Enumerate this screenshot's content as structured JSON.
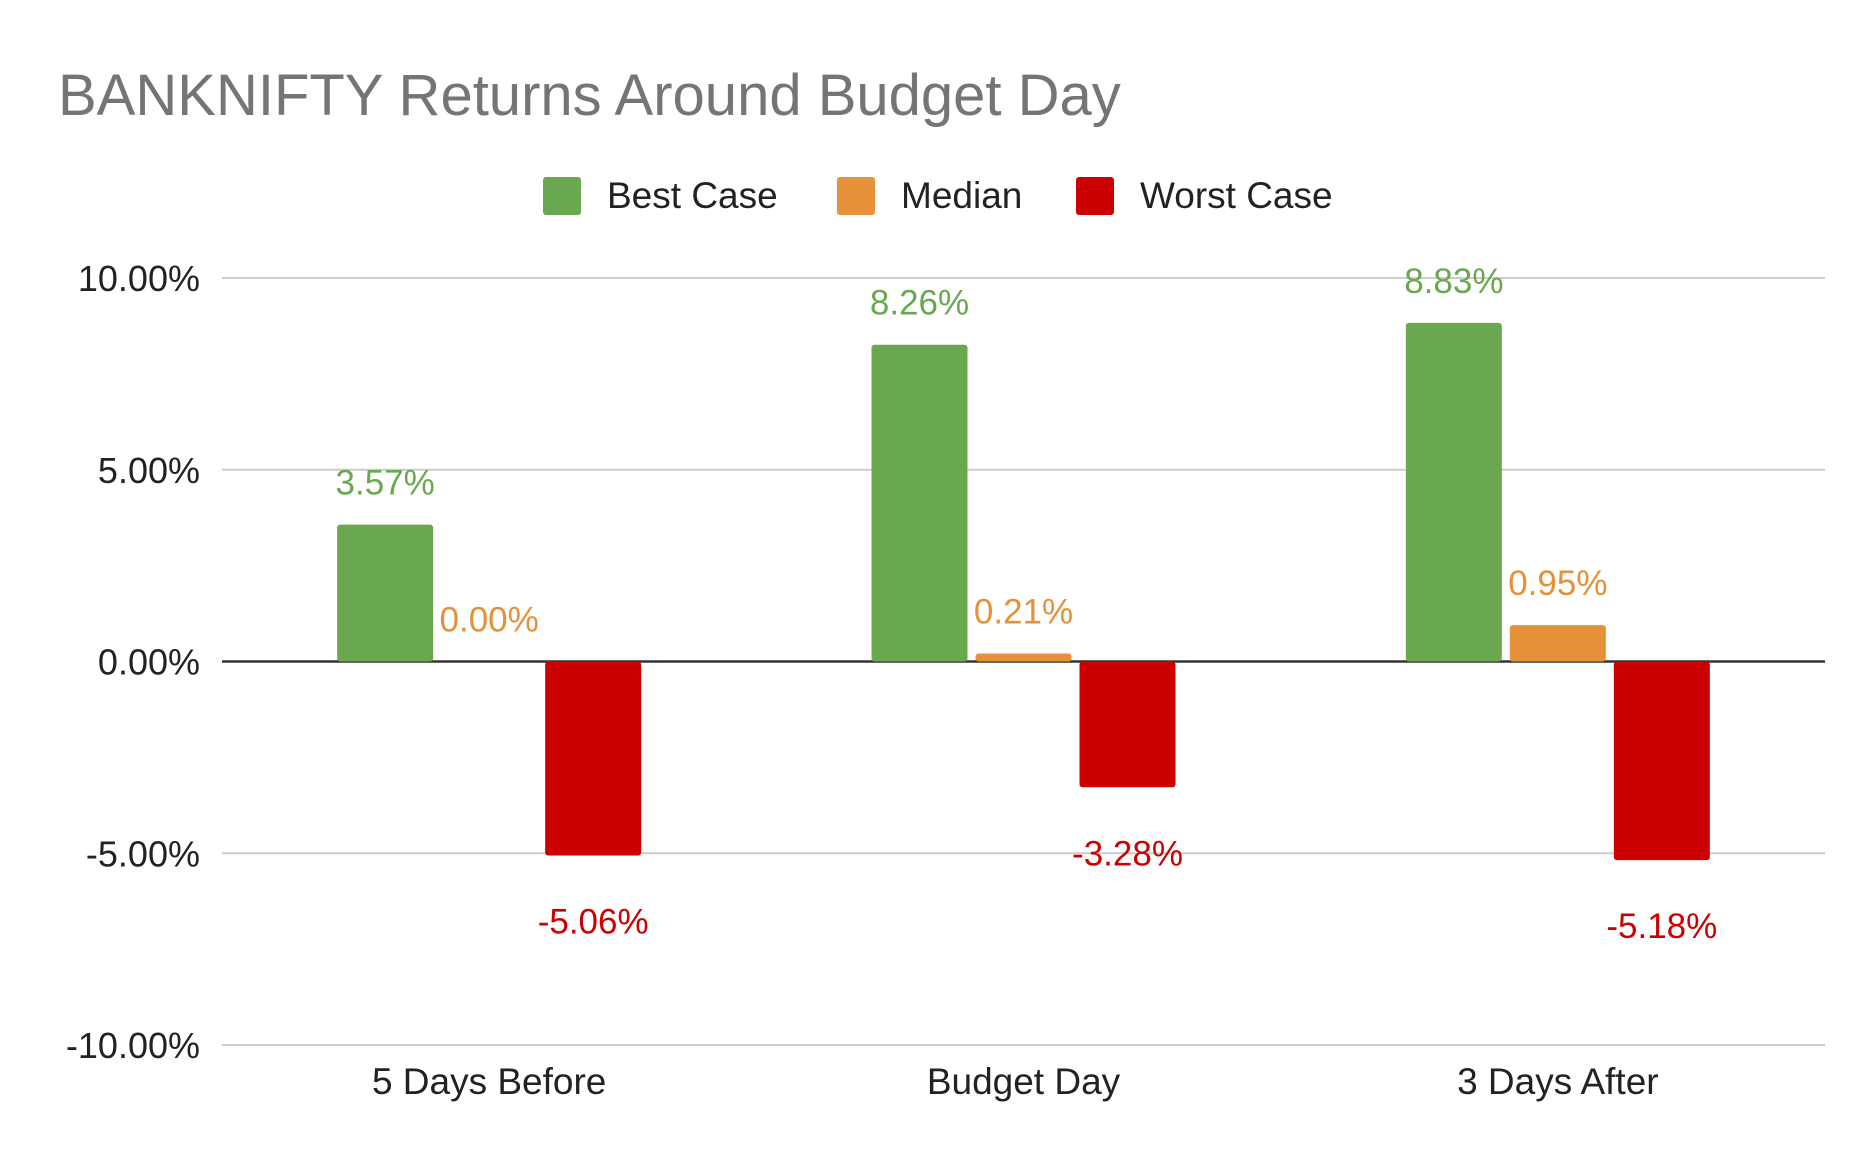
{
  "chart_data": {
    "type": "bar",
    "title": "BANKNIFTY Returns Around Budget Day",
    "xlabel": "",
    "ylabel": "",
    "categories": [
      "5 Days Before",
      "Budget Day",
      "3 Days After"
    ],
    "series": [
      {
        "name": "Best Case",
        "color": "#6aa84f",
        "values": [
          3.57,
          8.26,
          8.83
        ],
        "labels": [
          "3.57%",
          "8.26%",
          "8.83%"
        ]
      },
      {
        "name": "Median",
        "color": "#e69138",
        "values": [
          0.0,
          0.21,
          0.95
        ],
        "labels": [
          "0.00%",
          "0.21%",
          "0.95%"
        ]
      },
      {
        "name": "Worst Case",
        "color": "#cc0000",
        "values": [
          -5.06,
          -3.28,
          -5.18
        ],
        "labels": [
          "-5.06%",
          "-3.28%",
          "-5.18%"
        ]
      }
    ],
    "ylim": [
      -10,
      10
    ],
    "yticks": [
      10,
      5,
      0,
      -5,
      -10
    ],
    "ytick_labels": [
      "10.00%",
      "5.00%",
      "0.00%",
      "-5.00%",
      "-10.00%"
    ],
    "grid": true,
    "legend_position": "top-center"
  }
}
